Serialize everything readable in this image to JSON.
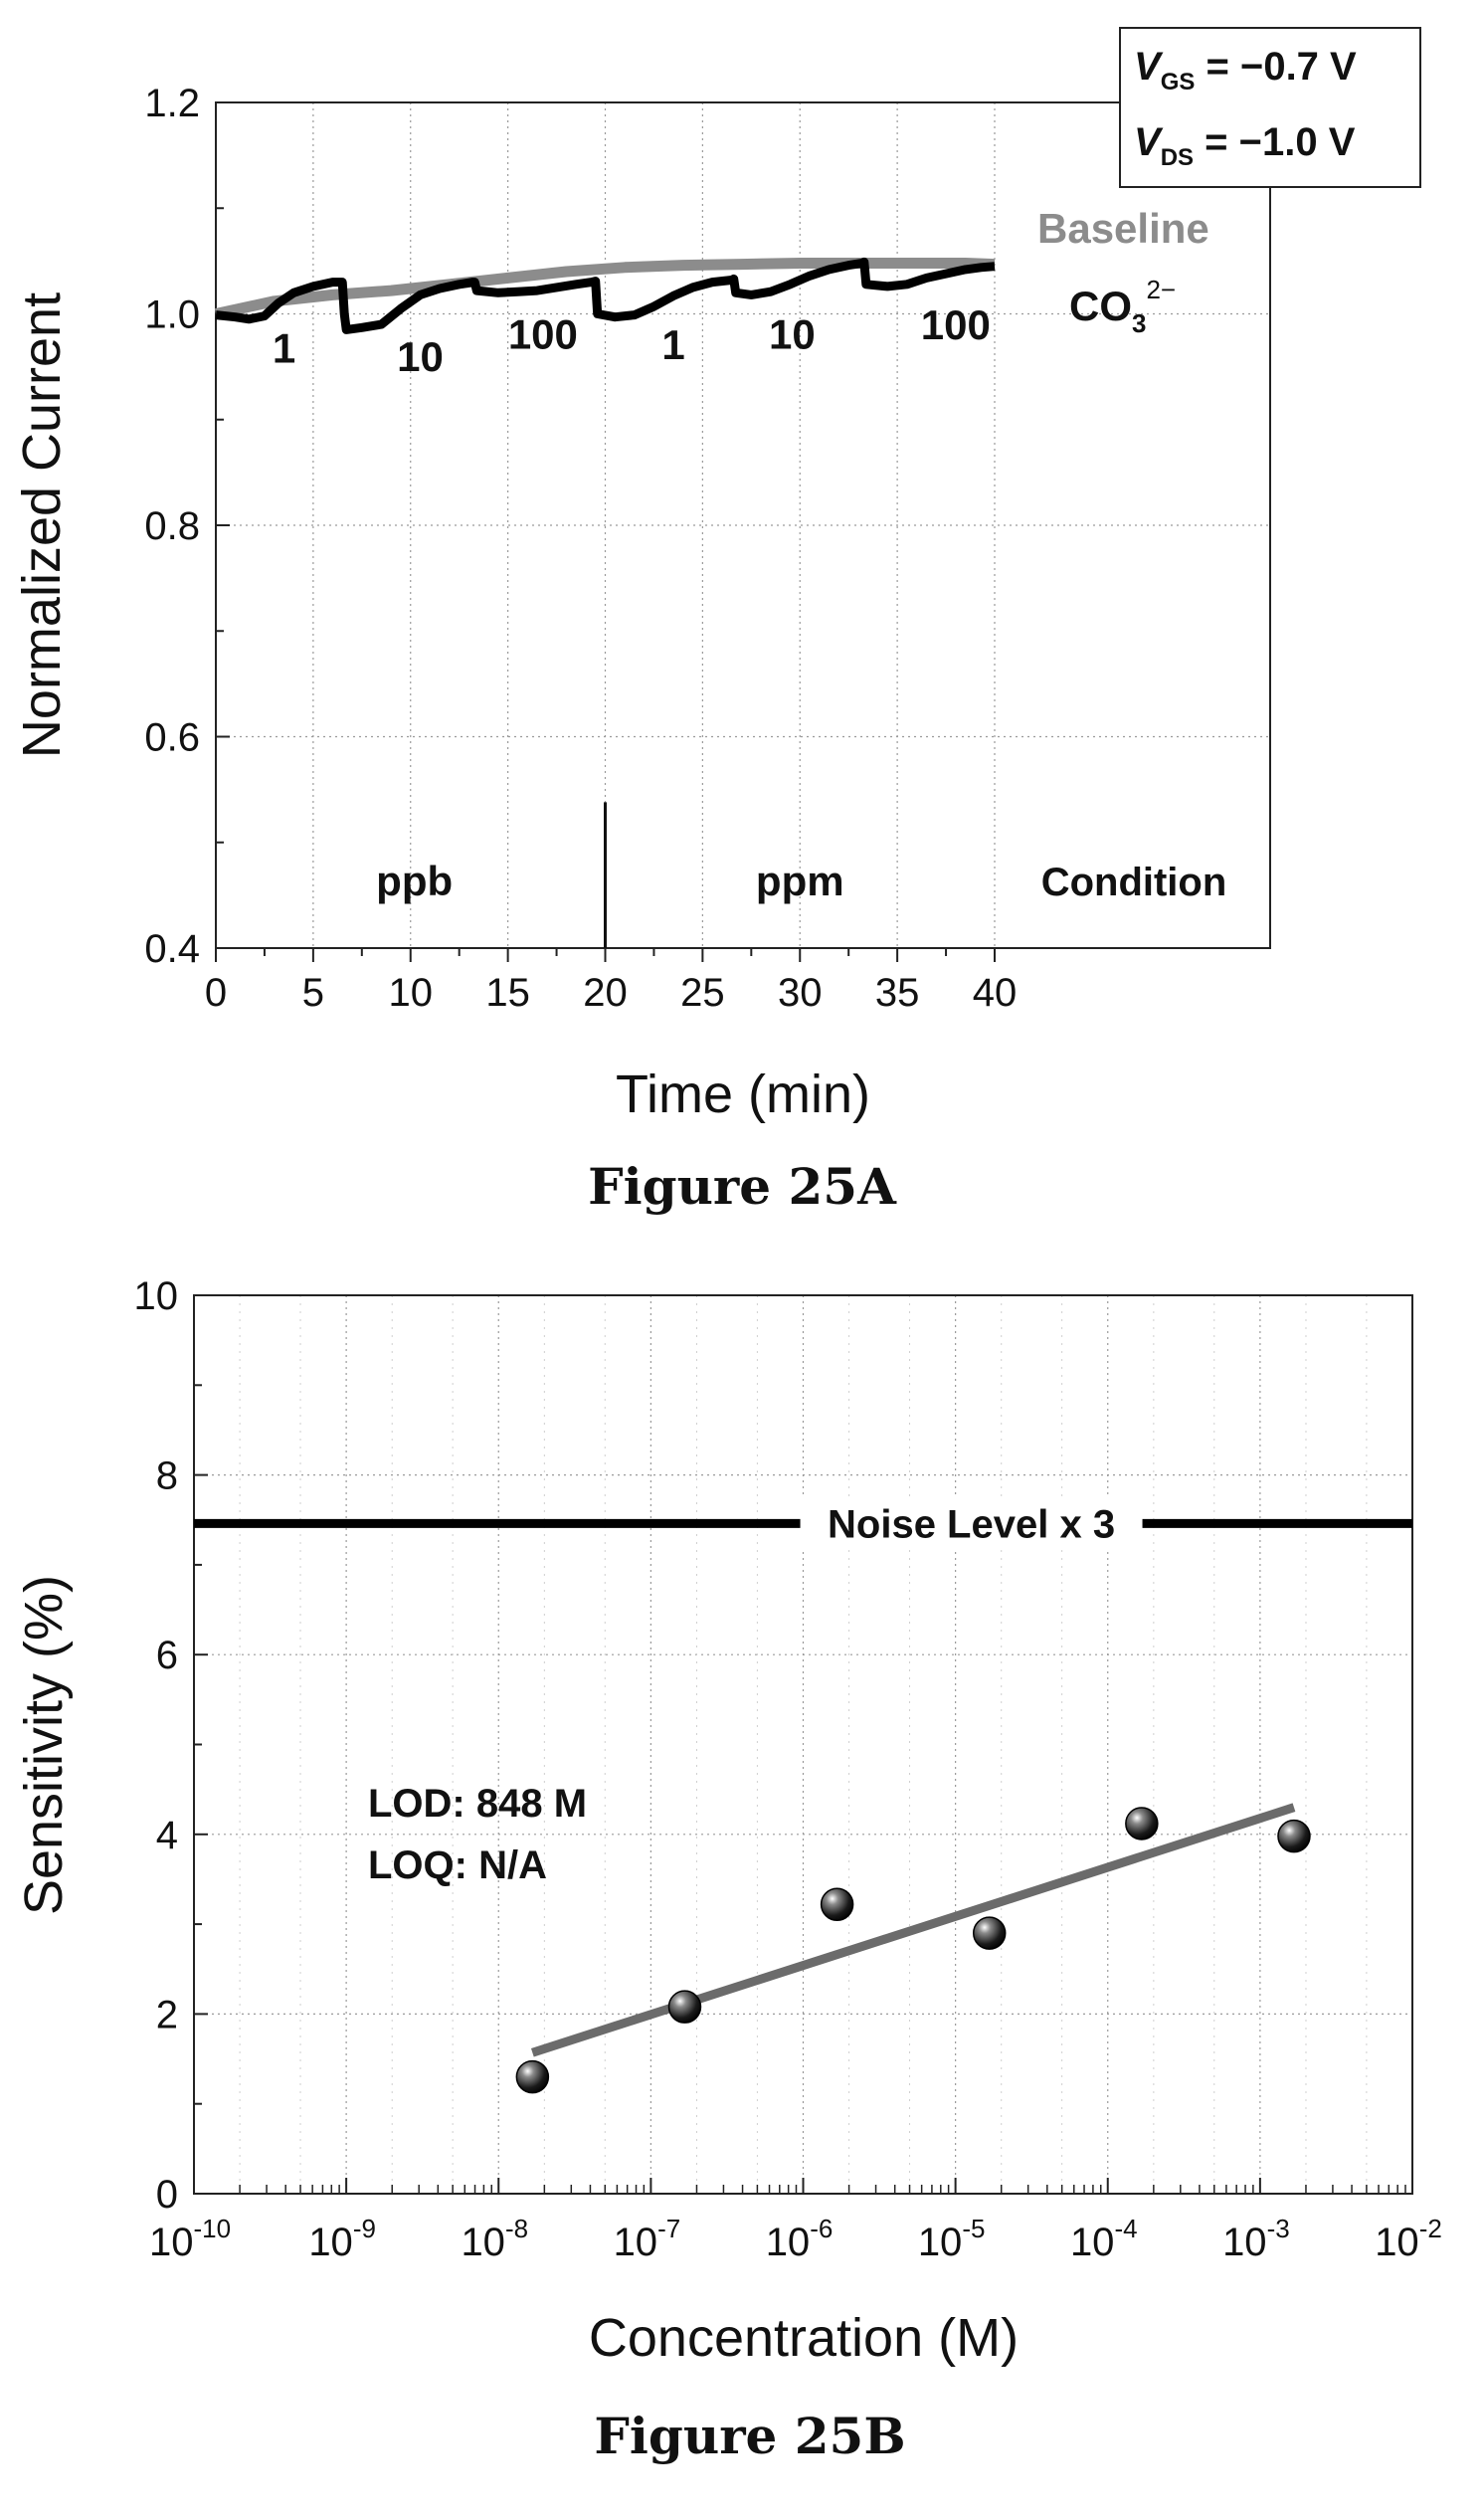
{
  "figures": [
    {
      "caption": "Figure 25A"
    },
    {
      "caption": "Figure 25B"
    }
  ],
  "chart_data": [
    {
      "type": "line",
      "xlabel": "Time (min)",
      "ylabel": "Normalized Current",
      "xlim": [
        0,
        40
      ],
      "ylim": [
        0.4,
        1.2
      ],
      "xticks": [
        "0",
        "5",
        "10",
        "15",
        "20",
        "25",
        "30",
        "35",
        "40"
      ],
      "yticks": [
        "0.4",
        "0.6",
        "0.8",
        "1.0",
        "1.2"
      ],
      "grid": true,
      "conditions": {
        "vgs_prefix": "V",
        "vgs_sub": "GS",
        "vgs_value": " = −0.7 V",
        "vds_prefix": "V",
        "vds_sub": "DS",
        "vds_value": " = −1.0 V"
      },
      "series": [
        {
          "name": "Baseline",
          "color": "#8c8c8c",
          "x": [
            0,
            3,
            6,
            9,
            12,
            15,
            18,
            21,
            24,
            27,
            30,
            33,
            36,
            38.5,
            40
          ],
          "y": [
            1.0,
            1.012,
            1.018,
            1.022,
            1.028,
            1.034,
            1.04,
            1.044,
            1.046,
            1.047,
            1.048,
            1.048,
            1.048,
            1.048,
            1.047
          ]
        },
        {
          "name": "CO3",
          "name_sup": "2−",
          "color": "#000000",
          "x": [
            0,
            1,
            1.7,
            2.5,
            3.2,
            4.0,
            5.0,
            6.0,
            6.5,
            6.6,
            6.7,
            7.5,
            8.5,
            9.5,
            10.5,
            11.5,
            12.5,
            13.2,
            13.3,
            13.4,
            14.5,
            15.5,
            16.5,
            17.5,
            18.5,
            19.3,
            19.5,
            19.6,
            20.5,
            21.5,
            22.5,
            23.5,
            24.5,
            25.5,
            26.5,
            26.6,
            26.7,
            27.5,
            28.5,
            29.5,
            30.5,
            31.5,
            32.5,
            33.2,
            33.3,
            33.4,
            34.5,
            35.5,
            36.5,
            37.5,
            38.5,
            39.3,
            40
          ],
          "y": [
            0.999,
            0.997,
            0.995,
            0.998,
            1.01,
            1.02,
            1.026,
            1.03,
            1.03,
            1.0,
            0.985,
            0.987,
            0.99,
            1.005,
            1.018,
            1.024,
            1.028,
            1.03,
            1.03,
            1.022,
            1.02,
            1.021,
            1.022,
            1.025,
            1.028,
            1.03,
            1.031,
            1.0,
            0.997,
            0.999,
            1.007,
            1.017,
            1.025,
            1.03,
            1.032,
            1.033,
            1.02,
            1.018,
            1.021,
            1.028,
            1.036,
            1.042,
            1.046,
            1.048,
            1.049,
            1.028,
            1.026,
            1.028,
            1.034,
            1.038,
            1.042,
            1.044,
            1.045
          ]
        }
      ],
      "annotations": {
        "step_labels": [
          {
            "x": 3.5,
            "y": 0.954,
            "text": "1"
          },
          {
            "x": 10.5,
            "y": 0.946,
            "text": "10"
          },
          {
            "x": 16.8,
            "y": 0.967,
            "text": "100"
          },
          {
            "x": 23.5,
            "y": 0.957,
            "text": "1"
          },
          {
            "x": 29.6,
            "y": 0.967,
            "text": "10"
          },
          {
            "x": 38.0,
            "y": 0.976,
            "text": "100"
          }
        ],
        "units": [
          {
            "x": 10.2,
            "y": 0.45,
            "text": "ppb"
          },
          {
            "x": 30.0,
            "y": 0.45,
            "text": "ppm"
          }
        ],
        "condition_label": "Condition",
        "divider_x": 20,
        "divider_y_top": 0.538
      }
    },
    {
      "type": "scatter",
      "xlabel": "Concentration (M)",
      "ylabel": "Sensitivity (%)",
      "xscale": "log",
      "xlim": [
        1e-10,
        0.01
      ],
      "ylim": [
        0,
        10
      ],
      "x_tick_exponents": [
        "-10",
        "-9",
        "-8",
        "-7",
        "-6",
        "-5",
        "-4",
        "-3",
        "-2"
      ],
      "x_tick_base": "10",
      "yticks": [
        "0",
        "2",
        "4",
        "6",
        "8",
        "10"
      ],
      "grid": true,
      "points": {
        "x": [
          1.67e-08,
          1.67e-07,
          1.67e-06,
          1.67e-05,
          0.000167,
          0.00167
        ],
        "y": [
          1.3,
          2.08,
          3.22,
          2.9,
          4.12,
          3.98
        ]
      },
      "fit_line": {
        "x": [
          1.67e-08,
          0.00167
        ],
        "y": [
          1.57,
          4.3
        ],
        "color": "#6b6b6b"
      },
      "noise_level": {
        "y": 7.46,
        "label": "Noise Level x 3"
      },
      "text_annotations": [
        "LOD: 848 M",
        "LOQ: N/A"
      ]
    }
  ]
}
